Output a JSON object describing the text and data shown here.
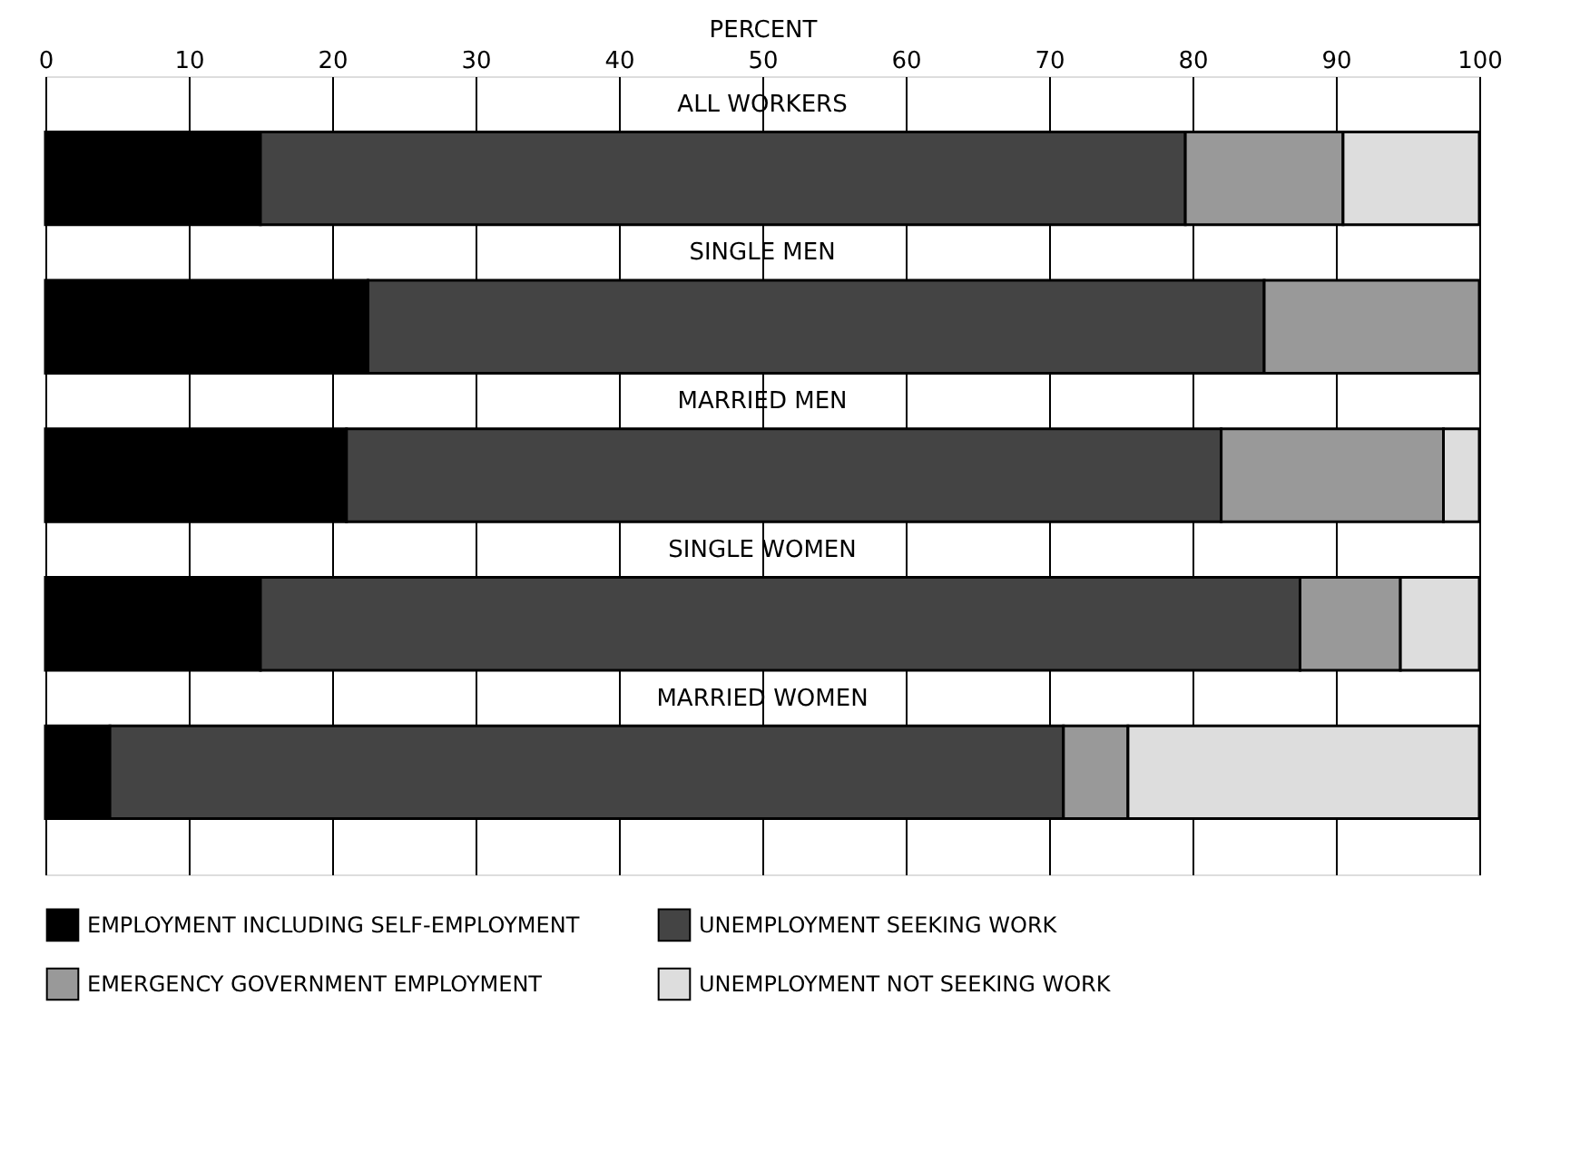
{
  "chart_data": {
    "type": "bar",
    "orientation": "horizontal",
    "stacked": true,
    "xlabel": "PERCENT",
    "categories": [
      "ALL WORKERS",
      "SINGLE MEN",
      "MARRIED MEN",
      "SINGLE WOMEN",
      "MARRIED WOMEN"
    ],
    "series": [
      {
        "name": "EMPLOYMENT INCLUDING SELF-EMPLOYMENT",
        "color": "#000000",
        "values": [
          15,
          22.5,
          21,
          15,
          4.5
        ]
      },
      {
        "name": "UNEMPLOYMENT SEEKING WORK",
        "color": "#444444",
        "values": [
          64.5,
          62.5,
          61,
          72.5,
          66.5
        ]
      },
      {
        "name": "EMERGENCY GOVERNMENT EMPLOYMENT",
        "color": "#999999",
        "values": [
          11,
          15,
          15.5,
          7,
          4.5
        ]
      },
      {
        "name": "UNEMPLOYMENT NOT SEEKING WORK",
        "color": "#dddddd",
        "values": [
          9.5,
          0,
          2.5,
          5.5,
          24.5
        ]
      }
    ],
    "xlim": [
      0,
      100
    ],
    "xticks": [
      0,
      10,
      20,
      30,
      40,
      50,
      60,
      70,
      80,
      90,
      100
    ],
    "grid": "x",
    "legend": "bottom"
  }
}
